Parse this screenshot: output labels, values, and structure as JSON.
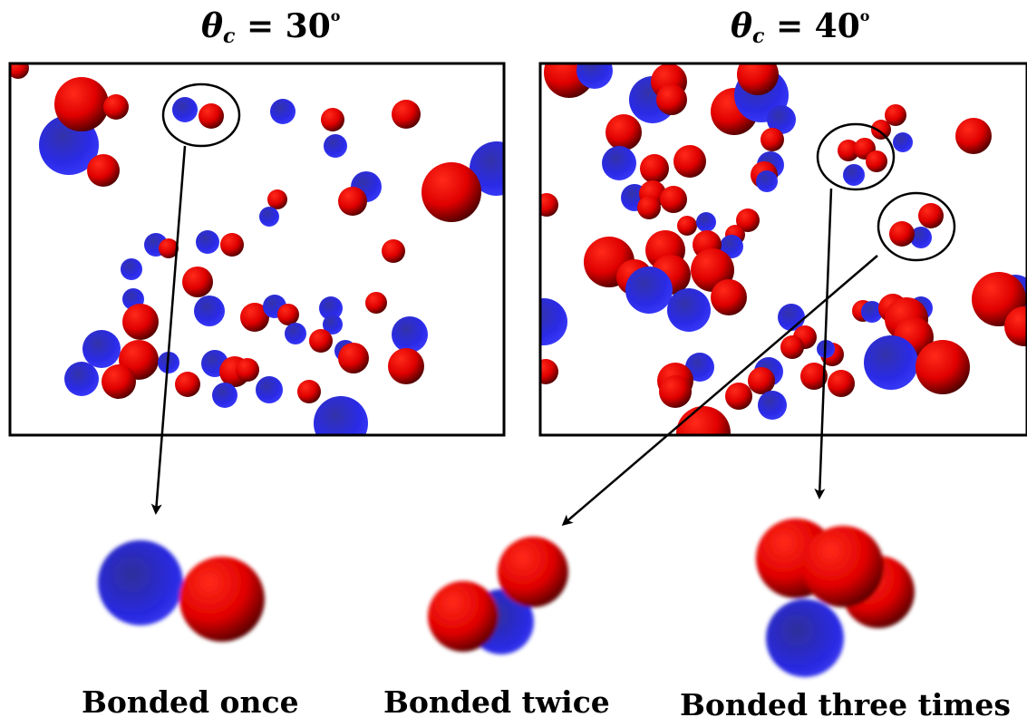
{
  "panels": [
    {
      "title_symbol": "θ",
      "title_subscript": "c",
      "title_value": " = 30",
      "title_superscript": "o"
    },
    {
      "title_symbol": "θ",
      "title_subscript": "c",
      "title_value": " = 40",
      "title_superscript": "o"
    }
  ],
  "captions": {
    "once": "Bonded once",
    "twice": "Bonded twice",
    "three": "Bonded three times"
  },
  "colors": {
    "red": "#ee0000",
    "blue": "#2a2aee",
    "frame": "#000000"
  }
}
